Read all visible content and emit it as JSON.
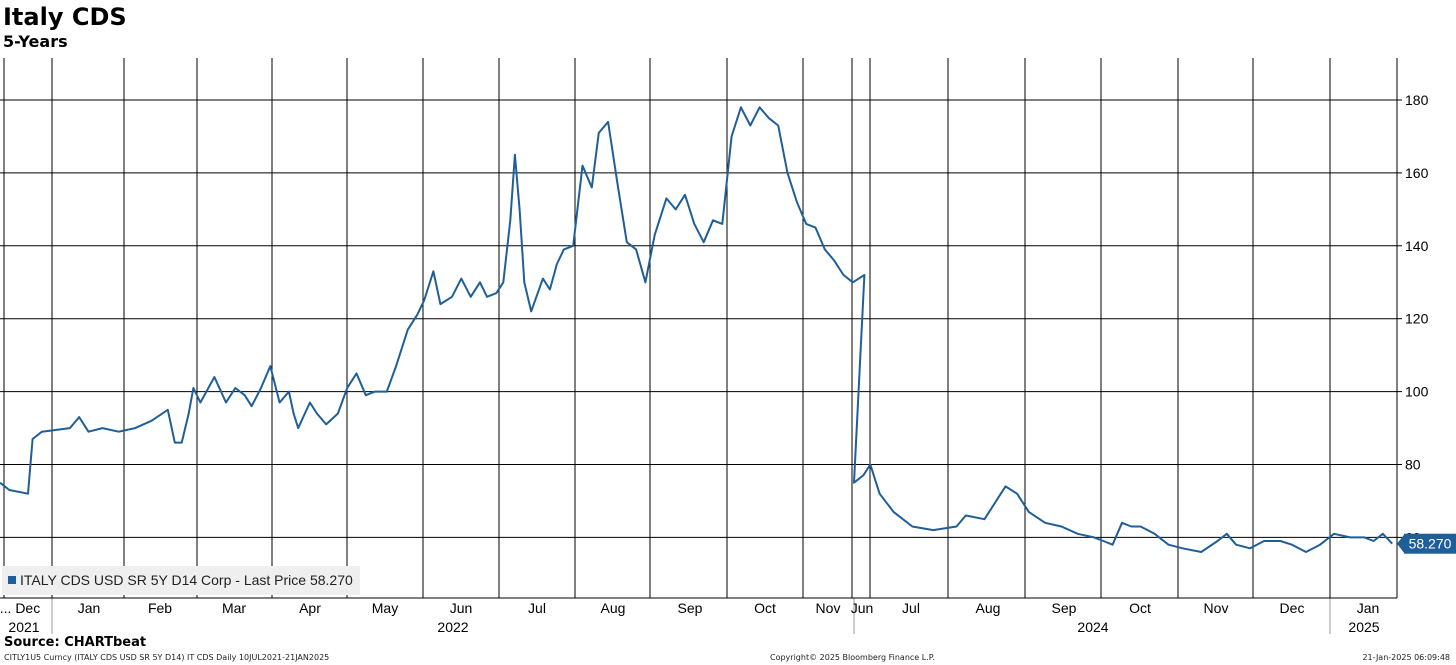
{
  "header": {
    "title": "Italy CDS",
    "subtitle": "5-Years"
  },
  "chart_data": {
    "type": "line",
    "title": "Italy CDS",
    "subtitle": "5-Years",
    "xlabel": "",
    "ylabel": "",
    "ylim": [
      45,
      190
    ],
    "y_ticks": [
      60,
      80,
      100,
      120,
      140,
      160,
      180
    ],
    "y_axis_side": "right",
    "grid": true,
    "x_tick_labels": [
      "... Dec",
      "Jan",
      "Feb",
      "Mar",
      "Apr",
      "May",
      "Jun",
      "Jul",
      "Aug",
      "Sep",
      "Oct",
      "Nov",
      "Jun",
      "Jul",
      "Aug",
      "Sep",
      "Oct",
      "Nov",
      "Dec",
      "Jan"
    ],
    "x_year_labels": [
      "2021",
      "2022",
      "2024",
      "2025"
    ],
    "series": [
      {
        "name": "ITALY CDS USD SR 5Y D14 Corp - Last Price 58.270",
        "color": "#1f5f99",
        "last_value": "58.270",
        "points": [
          [
            "2021-11-20",
            75
          ],
          [
            "2021-11-24",
            73
          ],
          [
            "2021-12-02",
            72
          ],
          [
            "2021-12-04",
            87
          ],
          [
            "2021-12-08",
            89
          ],
          [
            "2021-12-20",
            90
          ],
          [
            "2021-12-24",
            93
          ],
          [
            "2021-12-28",
            89
          ],
          [
            "2022-01-03",
            90
          ],
          [
            "2022-01-10",
            89
          ],
          [
            "2022-01-17",
            90
          ],
          [
            "2022-01-24",
            92
          ],
          [
            "2022-01-31",
            95
          ],
          [
            "2022-02-03",
            86
          ],
          [
            "2022-02-06",
            86
          ],
          [
            "2022-02-09",
            94
          ],
          [
            "2022-02-11",
            101
          ],
          [
            "2022-02-14",
            97
          ],
          [
            "2022-02-20",
            104
          ],
          [
            "2022-02-25",
            97
          ],
          [
            "2022-03-01",
            101
          ],
          [
            "2022-03-05",
            99
          ],
          [
            "2022-03-08",
            96
          ],
          [
            "2022-03-12",
            101
          ],
          [
            "2022-03-16",
            107
          ],
          [
            "2022-03-20",
            97
          ],
          [
            "2022-03-24",
            100
          ],
          [
            "2022-03-26",
            94
          ],
          [
            "2022-03-28",
            90
          ],
          [
            "2022-04-02",
            97
          ],
          [
            "2022-04-05",
            94
          ],
          [
            "2022-04-09",
            91
          ],
          [
            "2022-04-14",
            94
          ],
          [
            "2022-04-18",
            101
          ],
          [
            "2022-04-22",
            105
          ],
          [
            "2022-04-26",
            99
          ],
          [
            "2022-04-30",
            100
          ],
          [
            "2022-05-05",
            100
          ],
          [
            "2022-05-09",
            107
          ],
          [
            "2022-05-14",
            117
          ],
          [
            "2022-05-18",
            121
          ],
          [
            "2022-05-21",
            125
          ],
          [
            "2022-05-25",
            133
          ],
          [
            "2022-05-28",
            124
          ],
          [
            "2022-06-02",
            126
          ],
          [
            "2022-06-06",
            131
          ],
          [
            "2022-06-10",
            126
          ],
          [
            "2022-06-14",
            130
          ],
          [
            "2022-06-17",
            126
          ],
          [
            "2022-06-21",
            127
          ],
          [
            "2022-06-24",
            130
          ],
          [
            "2022-06-27",
            147
          ],
          [
            "2022-06-29",
            165
          ],
          [
            "2022-07-01",
            150
          ],
          [
            "2022-07-03",
            130
          ],
          [
            "2022-07-06",
            122
          ],
          [
            "2022-07-11",
            131
          ],
          [
            "2022-07-14",
            128
          ],
          [
            "2022-07-17",
            135
          ],
          [
            "2022-07-20",
            139
          ],
          [
            "2022-07-24",
            140
          ],
          [
            "2022-07-28",
            162
          ],
          [
            "2022-08-01",
            156
          ],
          [
            "2022-08-04",
            171
          ],
          [
            "2022-08-08",
            174
          ],
          [
            "2022-08-12",
            157
          ],
          [
            "2022-08-16",
            141
          ],
          [
            "2022-08-20",
            139
          ],
          [
            "2022-08-24",
            130
          ],
          [
            "2022-08-28",
            143
          ],
          [
            "2022-09-02",
            153
          ],
          [
            "2022-09-06",
            150
          ],
          [
            "2022-09-10",
            154
          ],
          [
            "2022-09-14",
            146
          ],
          [
            "2022-09-18",
            141
          ],
          [
            "2022-09-22",
            147
          ],
          [
            "2022-09-26",
            146
          ],
          [
            "2022-09-30",
            170
          ],
          [
            "2022-10-04",
            178
          ],
          [
            "2022-10-08",
            173
          ],
          [
            "2022-10-12",
            178
          ],
          [
            "2022-10-16",
            175
          ],
          [
            "2022-10-20",
            173
          ],
          [
            "2022-10-24",
            160
          ],
          [
            "2022-10-28",
            152
          ],
          [
            "2022-11-01",
            146
          ],
          [
            "2022-11-05",
            145
          ],
          [
            "2022-11-09",
            139
          ],
          [
            "2022-11-13",
            136
          ],
          [
            "2022-11-17",
            132
          ],
          [
            "2022-11-21",
            130
          ],
          [
            "2022-11-26",
            132
          ],
          [
            "2024-06-01",
            75
          ],
          [
            "2024-06-05",
            77
          ],
          [
            "2024-06-08",
            80
          ],
          [
            "2024-06-12",
            72
          ],
          [
            "2024-06-18",
            67
          ],
          [
            "2024-06-26",
            63
          ],
          [
            "2024-07-05",
            62
          ],
          [
            "2024-07-15",
            63
          ],
          [
            "2024-07-19",
            66
          ],
          [
            "2024-07-27",
            65
          ],
          [
            "2024-08-02",
            71
          ],
          [
            "2024-08-05",
            74
          ],
          [
            "2024-08-10",
            72
          ],
          [
            "2024-08-15",
            67
          ],
          [
            "2024-08-22",
            64
          ],
          [
            "2024-08-29",
            63
          ],
          [
            "2024-09-05",
            61
          ],
          [
            "2024-09-12",
            60
          ],
          [
            "2024-09-16",
            59
          ],
          [
            "2024-09-20",
            58
          ],
          [
            "2024-09-24",
            64
          ],
          [
            "2024-09-28",
            63
          ],
          [
            "2024-10-02",
            63
          ],
          [
            "2024-10-08",
            61
          ],
          [
            "2024-10-14",
            58
          ],
          [
            "2024-10-20",
            57
          ],
          [
            "2024-10-28",
            56
          ],
          [
            "2024-11-04",
            59
          ],
          [
            "2024-11-08",
            61
          ],
          [
            "2024-11-12",
            58
          ],
          [
            "2024-11-18",
            57
          ],
          [
            "2024-11-24",
            59
          ],
          [
            "2024-12-01",
            59
          ],
          [
            "2024-12-06",
            58
          ],
          [
            "2024-12-12",
            56
          ],
          [
            "2024-12-18",
            58
          ],
          [
            "2024-12-24",
            61
          ],
          [
            "2024-12-31",
            60
          ],
          [
            "2025-01-06",
            60
          ],
          [
            "2025-01-10",
            59
          ],
          [
            "2025-01-14",
            61
          ],
          [
            "2025-01-18",
            58.27
          ]
        ]
      }
    ]
  },
  "legend": {
    "text": "ITALY CDS USD SR 5Y D14 Corp - Last Price 58.270",
    "color": "#1f5f99"
  },
  "last_price_tag": "58.270",
  "footer": {
    "source": "Source: CHARTbeat",
    "left": "CITLY1U5 Curncy (ITALY CDS USD SR 5Y D14) IT CDS  Daily 10JUL2021-21JAN2025",
    "middle": "Copyright© 2025 Bloomberg Finance L.P.",
    "right": "21-Jan-2025 06:09:48"
  }
}
